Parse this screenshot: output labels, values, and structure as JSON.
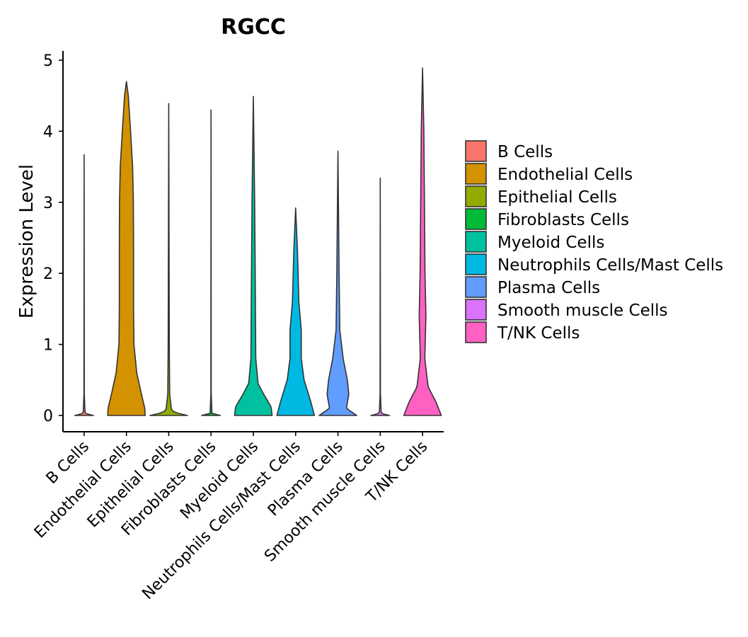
{
  "chart_data": {
    "type": "violin",
    "title": "RGCC",
    "xlabel": "",
    "ylabel": "Expression Level",
    "ylim": [
      -0.25,
      5.15
    ],
    "yticks": [
      0,
      1,
      2,
      3,
      4,
      5
    ],
    "categories": [
      "B Cells",
      "Endothelial Cells",
      "Epithelial Cells",
      "Fibroblasts Cells",
      "Myeloid Cells",
      "Neutrophils Cells/Mast Cells",
      "Plasma Cells",
      "Smooth muscle Cells",
      "T/NK Cells"
    ],
    "colors": [
      "#F8766D",
      "#D39200",
      "#93AA00",
      "#00BA38",
      "#00C19F",
      "#00B9E3",
      "#619CFF",
      "#DB72FB",
      "#FF61C3"
    ],
    "max_values": [
      3.67,
      4.7,
      4.39,
      4.3,
      4.49,
      2.92,
      3.72,
      3.34,
      4.89
    ],
    "density_profiles": [
      [
        [
          0,
          0.5
        ],
        [
          0.03,
          0.05
        ],
        [
          0.3,
          0.01
        ],
        [
          3.67,
          0.0
        ]
      ],
      [
        [
          0,
          1.0
        ],
        [
          0.1,
          0.98
        ],
        [
          0.3,
          0.8
        ],
        [
          0.6,
          0.55
        ],
        [
          1.0,
          0.4
        ],
        [
          1.5,
          0.38
        ],
        [
          2.3,
          0.38
        ],
        [
          3.0,
          0.37
        ],
        [
          3.5,
          0.33
        ],
        [
          4.0,
          0.22
        ],
        [
          4.5,
          0.1
        ],
        [
          4.7,
          0.0
        ]
      ],
      [
        [
          0,
          1.0
        ],
        [
          0.03,
          0.5
        ],
        [
          0.07,
          0.15
        ],
        [
          0.3,
          0.05
        ],
        [
          1.0,
          0.03
        ],
        [
          4.39,
          0.0
        ]
      ],
      [
        [
          0,
          0.5
        ],
        [
          0.03,
          0.05
        ],
        [
          0.3,
          0.01
        ],
        [
          4.3,
          0.0
        ]
      ],
      [
        [
          0,
          1.0
        ],
        [
          0.12,
          0.95
        ],
        [
          0.3,
          0.55
        ],
        [
          0.45,
          0.25
        ],
        [
          0.8,
          0.13
        ],
        [
          2.0,
          0.1
        ],
        [
          3.0,
          0.07
        ],
        [
          4.49,
          0.0
        ]
      ],
      [
        [
          0,
          1.0
        ],
        [
          0.2,
          0.8
        ],
        [
          0.5,
          0.45
        ],
        [
          0.8,
          0.3
        ],
        [
          1.2,
          0.3
        ],
        [
          1.6,
          0.17
        ],
        [
          2.3,
          0.1
        ],
        [
          2.92,
          0.0
        ]
      ],
      [
        [
          0,
          1.0
        ],
        [
          0.1,
          0.45
        ],
        [
          0.3,
          0.58
        ],
        [
          0.5,
          0.5
        ],
        [
          0.8,
          0.28
        ],
        [
          1.2,
          0.1
        ],
        [
          2.0,
          0.06
        ],
        [
          3.72,
          0.0
        ]
      ],
      [
        [
          0,
          0.5
        ],
        [
          0.03,
          0.05
        ],
        [
          0.3,
          0.01
        ],
        [
          3.34,
          0.0
        ]
      ],
      [
        [
          0,
          1.0
        ],
        [
          0.2,
          0.7
        ],
        [
          0.4,
          0.3
        ],
        [
          0.8,
          0.12
        ],
        [
          1.4,
          0.18
        ],
        [
          2.0,
          0.13
        ],
        [
          3.0,
          0.1
        ],
        [
          4.0,
          0.07
        ],
        [
          4.89,
          0.0
        ]
      ]
    ],
    "legend": {
      "position": "right",
      "entries": [
        "B Cells",
        "Endothelial Cells",
        "Epithelial Cells",
        "Fibroblasts Cells",
        "Myeloid Cells",
        "Neutrophils Cells/Mast Cells",
        "Plasma Cells",
        "Smooth muscle Cells",
        "T/NK Cells"
      ]
    },
    "grid": false
  }
}
